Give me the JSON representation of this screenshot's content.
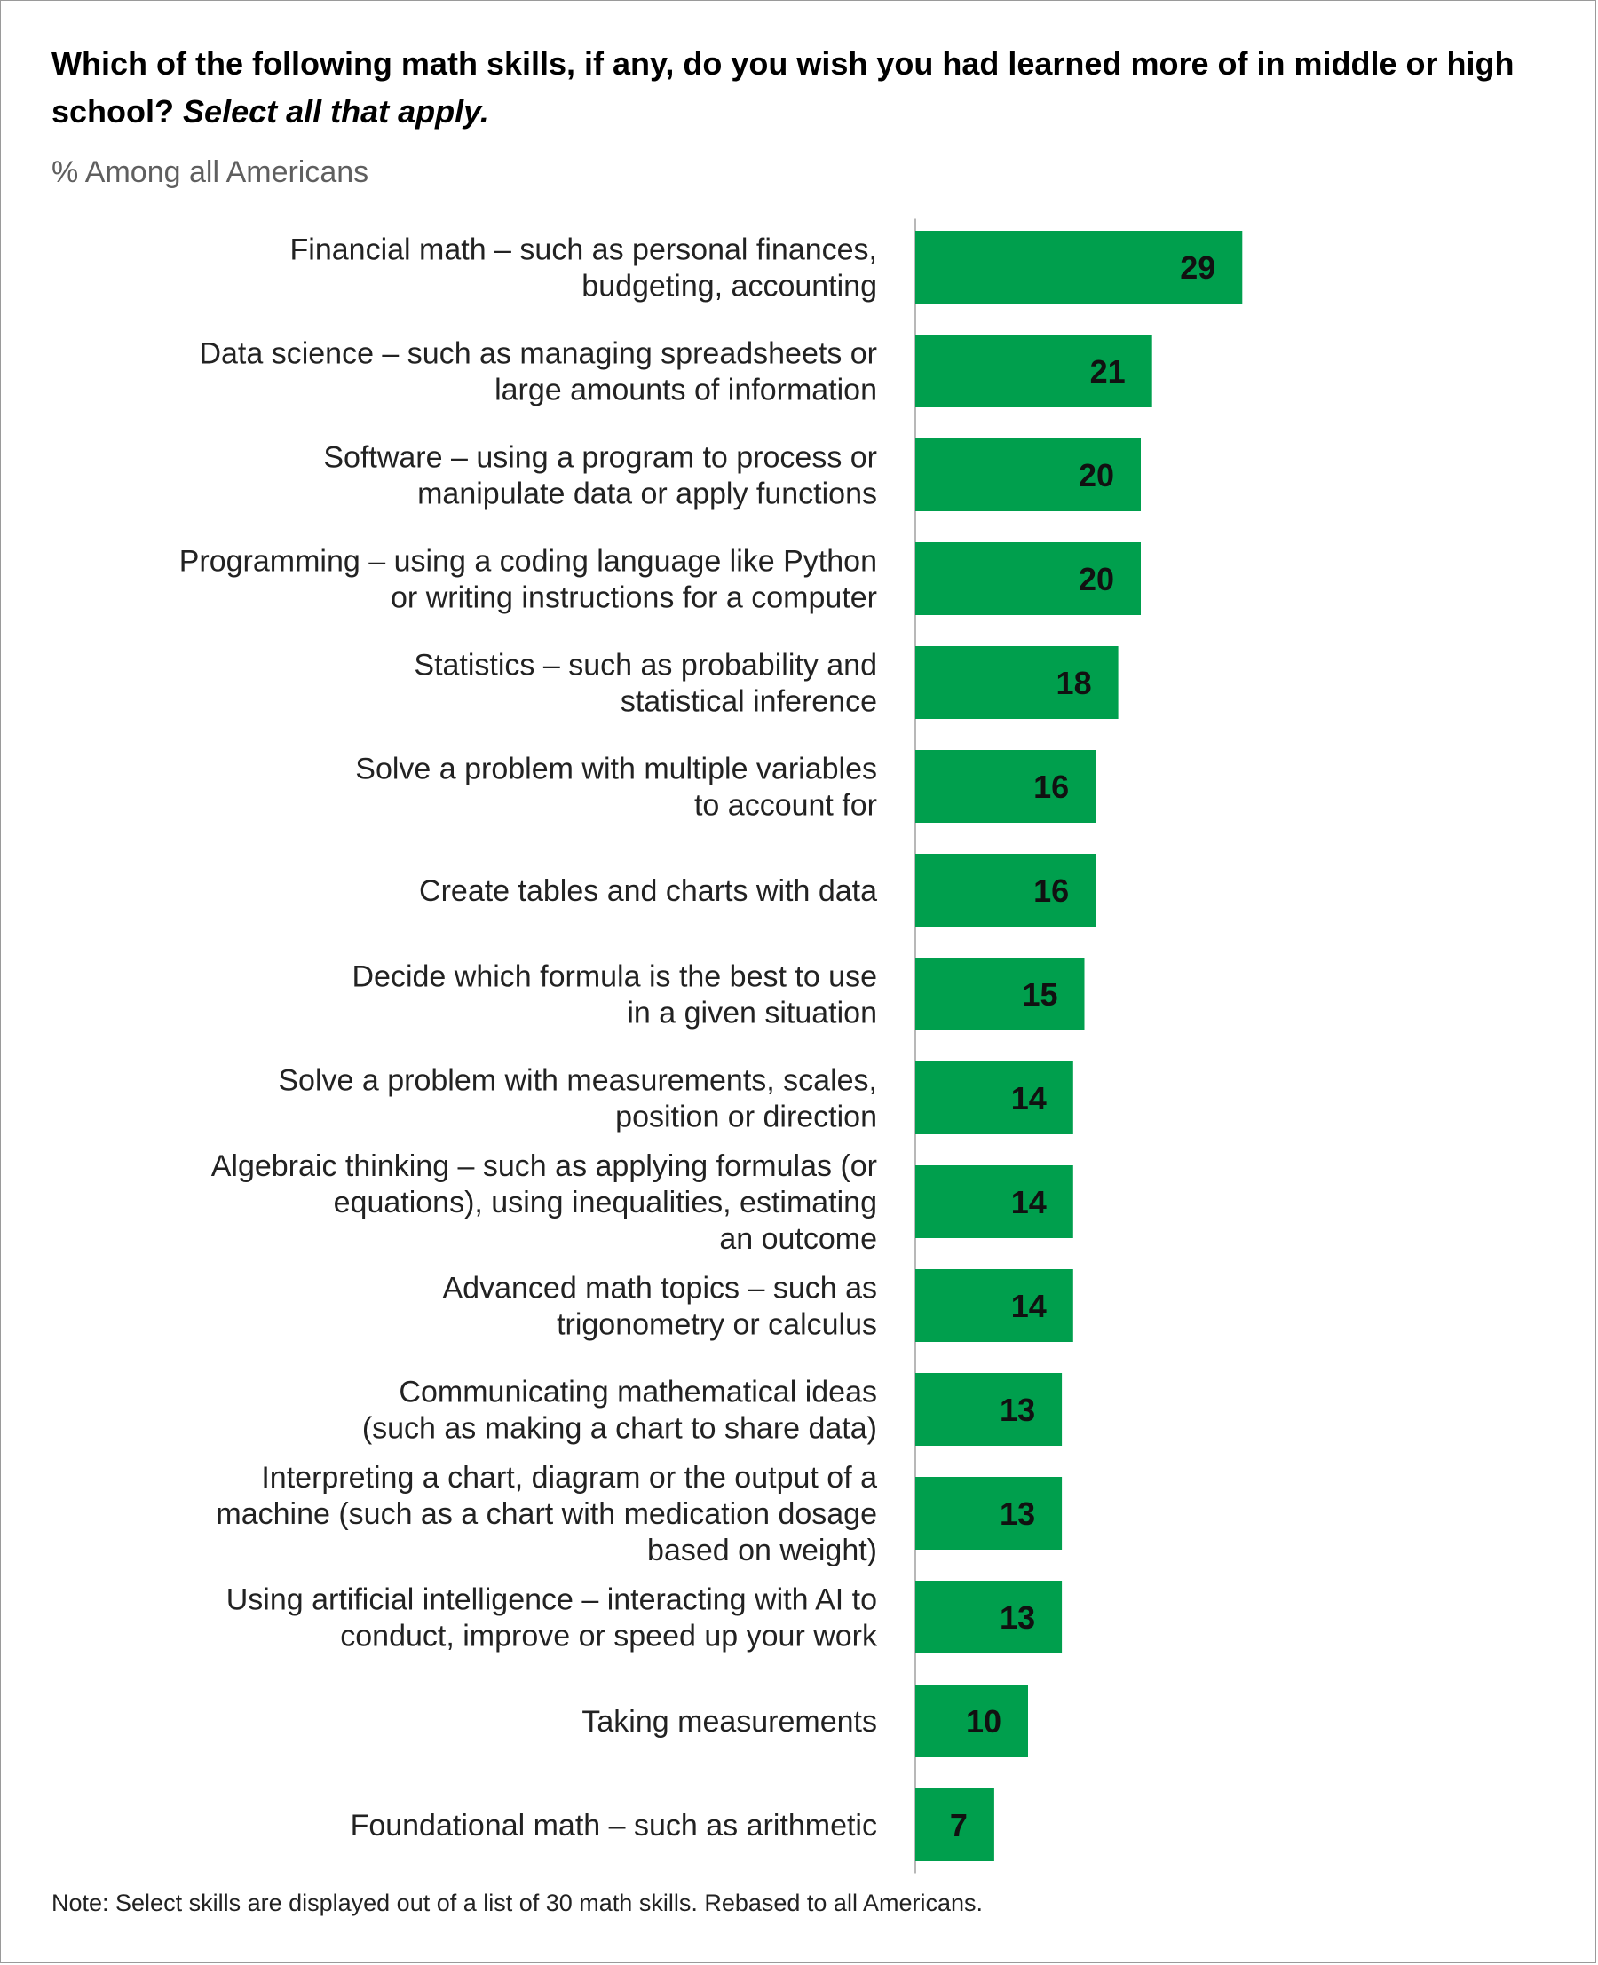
{
  "title": "Which of the following math skills, if any, do you wish you had learned more of in middle or high school?",
  "title_emphasis": "Select all that apply.",
  "subtitle": "% Among all Americans",
  "note": "Note: Select skills are displayed out of a list of 30 math skills. Rebased to all Americans.",
  "colors": {
    "bar": "#009f4d",
    "axis": "#b8b8b8"
  },
  "chart_data": {
    "type": "bar",
    "orientation": "horizontal",
    "categories": [
      [
        "Financial math – such as personal finances,",
        "budgeting, accounting"
      ],
      [
        "Data science – such as managing spreadsheets or",
        "large amounts of information"
      ],
      [
        "Software – using a program to process or",
        "manipulate data or apply functions"
      ],
      [
        "Programming – using a coding language like Python",
        "or writing instructions for a computer"
      ],
      [
        "Statistics – such as probability and",
        "statistical inference"
      ],
      [
        "Solve a problem with multiple variables",
        "to account for"
      ],
      [
        "Create tables and charts with data"
      ],
      [
        "Decide which formula is the best to use",
        "in a given situation"
      ],
      [
        "Solve a problem with measurements, scales,",
        "position or direction"
      ],
      [
        "Algebraic thinking – such as applying formulas (or",
        "equations), using inequalities, estimating",
        "an outcome"
      ],
      [
        "Advanced math topics – such as",
        "trigonometry or calculus"
      ],
      [
        "Communicating mathematical ideas",
        "(such as making a chart to share data)"
      ],
      [
        "Interpreting a chart, diagram or the output of a",
        "machine (such as a chart with medication dosage",
        "based on weight)"
      ],
      [
        "Using artificial intelligence – interacting with AI to",
        "conduct, improve or speed up your work"
      ],
      [
        "Taking measurements"
      ],
      [
        "Foundational math – such as arithmetic"
      ]
    ],
    "values": [
      29,
      21,
      20,
      20,
      18,
      16,
      16,
      15,
      14,
      14,
      14,
      13,
      13,
      13,
      10,
      7
    ],
    "xlim": [
      0,
      100
    ],
    "grid": false,
    "legend": "none"
  }
}
